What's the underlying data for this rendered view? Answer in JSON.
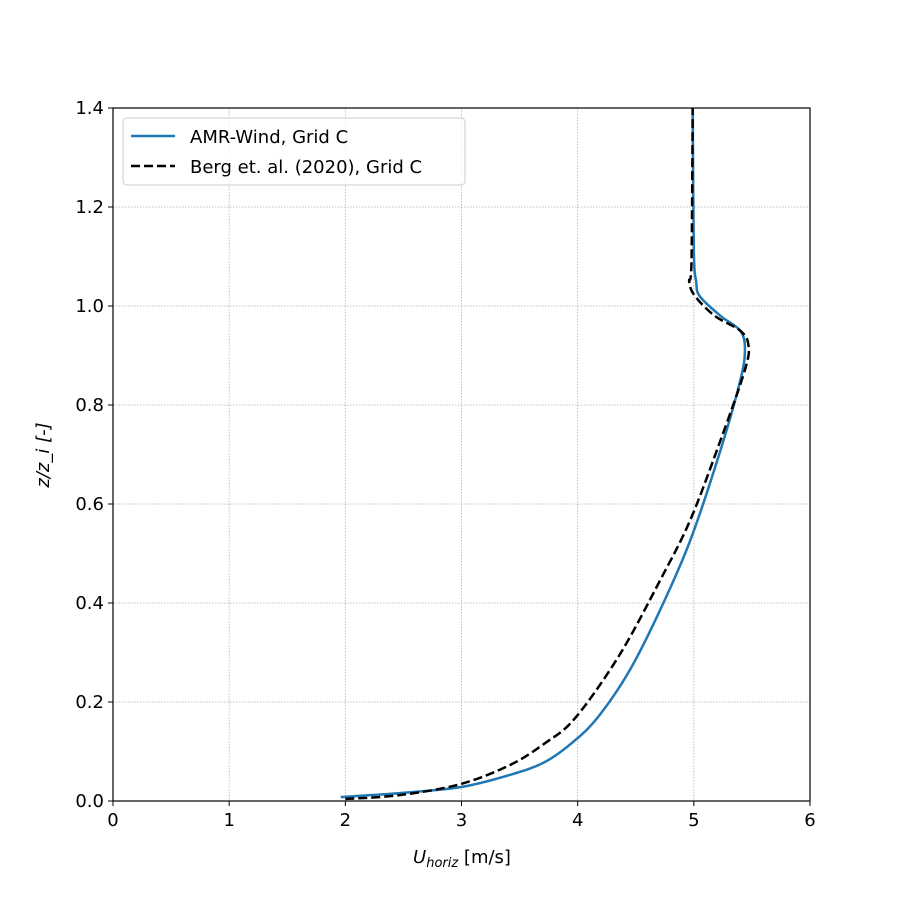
{
  "chart_data": {
    "type": "line",
    "title": "",
    "xlabel": "U_horiz [m/s]",
    "xlabel_main": "U",
    "xlabel_sub": "horiz",
    "xlabel_unit": " [m/s]",
    "ylabel": "z/z_i [-]",
    "ylabel_main": "z/z",
    "ylabel_sub": "i",
    "ylabel_unit": " [-]",
    "xlim": [
      0,
      6
    ],
    "ylim": [
      0,
      1.4
    ],
    "xticks": [
      "0",
      "1",
      "2",
      "3",
      "4",
      "5",
      "6"
    ],
    "yticks": [
      "0.0",
      "0.2",
      "0.4",
      "0.6",
      "0.8",
      "1.0",
      "1.2",
      "1.4"
    ],
    "grid": true,
    "legend_position": "top-left",
    "series": [
      {
        "name": "AMR-Wind, Grid C",
        "color": "#1f77b4",
        "style": "solid",
        "x": [
          1.96,
          2.47,
          2.99,
          3.42,
          3.72,
          3.98,
          4.19,
          4.45,
          4.71,
          4.97,
          5.23,
          5.4,
          5.44,
          5.4,
          5.23,
          5.05,
          5.02,
          5.0,
          4.99
        ],
        "y": [
          0.008,
          0.016,
          0.028,
          0.053,
          0.079,
          0.123,
          0.174,
          0.265,
          0.386,
          0.527,
          0.709,
          0.85,
          0.911,
          0.95,
          0.98,
          1.02,
          1.05,
          1.11,
          1.4
        ]
      },
      {
        "name": "Berg et. al. (2020), Grid C",
        "color": "#000000",
        "style": "dashed",
        "x": [
          2.0,
          2.47,
          2.99,
          3.42,
          3.72,
          3.98,
          4.36,
          4.71,
          4.97,
          5.23,
          5.44,
          5.47,
          5.4,
          5.18,
          5.01,
          4.96,
          4.98,
          4.99
        ],
        "y": [
          0.004,
          0.012,
          0.034,
          0.073,
          0.117,
          0.168,
          0.295,
          0.446,
          0.568,
          0.729,
          0.871,
          0.921,
          0.95,
          0.98,
          1.02,
          1.05,
          1.09,
          1.4
        ]
      }
    ]
  }
}
